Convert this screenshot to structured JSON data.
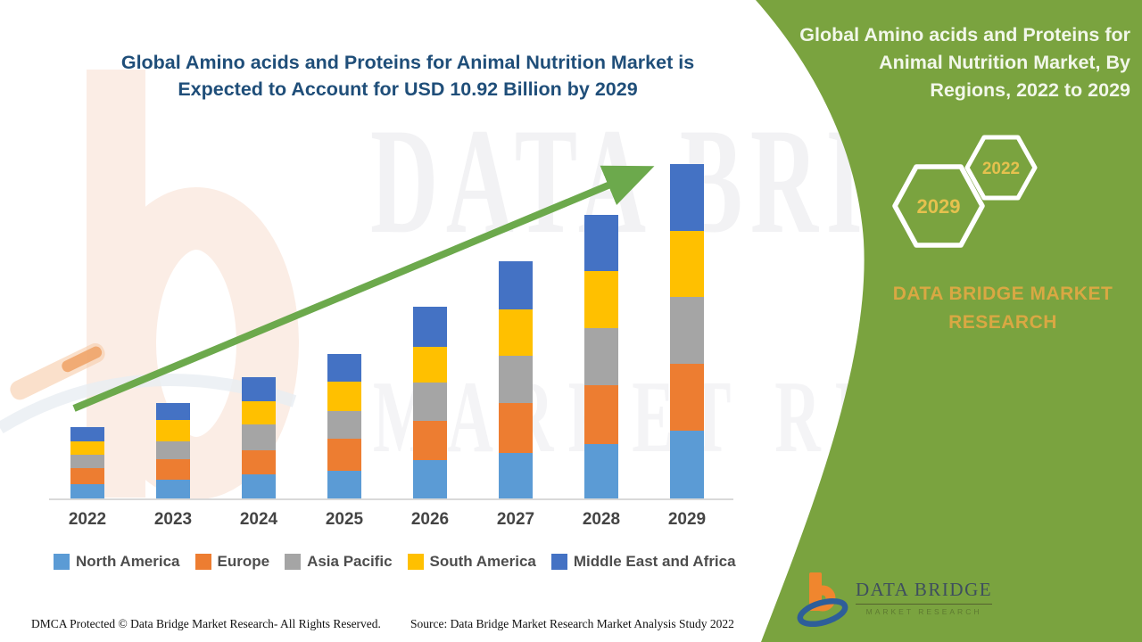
{
  "colors": {
    "panel_green": "#7AA33F",
    "title_blue": "#1F4E79",
    "arrow_green": "#6CA94C",
    "gold": "#D9A843",
    "hex_year_gold": "#E5C14E",
    "axis_gray": "#D9D9D9"
  },
  "header": {
    "title_line1": "Global Amino acids and Proteins for Animal Nutrition Market is",
    "title_line2": "Expected to Account for USD 10.92 Billion by 2029"
  },
  "panel": {
    "title_line1": "Global Amino acids and Proteins for",
    "title_line2": "Animal Nutrition Market, By",
    "title_line3": "Regions, 2022 to 2029",
    "hexagons": [
      {
        "label": "2029"
      },
      {
        "label": "2022"
      }
    ],
    "brand_line1": "DATA BRIDGE MARKET",
    "brand_line2": "RESEARCH",
    "logo": {
      "name": "DATA BRIDGE",
      "subtitle": "MARKET RESEARCH"
    }
  },
  "watermark": {
    "line1": "DATA BRIDGE",
    "line2": "MARKET RESEARCH"
  },
  "footer": {
    "left": "DMCA Protected © Data Bridge Market Research- All Rights Reserved.",
    "source": "Source: Data Bridge Market Research Market Analysis Study 2022"
  },
  "chart_data": {
    "type": "bar",
    "stacked": true,
    "title": "Global Amino acids and Proteins for Animal Nutrition Market is Expected to Account for USD 10.92 Billion by 2029",
    "unit": "USD Billion",
    "categories": [
      "2022",
      "2023",
      "2024",
      "2025",
      "2026",
      "2027",
      "2028",
      "2029"
    ],
    "series": [
      {
        "name": "North America",
        "color": "#5B9BD5",
        "values": [
          0.47,
          0.61,
          0.78,
          0.9,
          1.26,
          1.48,
          1.77,
          2.21
        ]
      },
      {
        "name": "Europe",
        "color": "#ED7D31",
        "values": [
          0.52,
          0.67,
          0.78,
          1.04,
          1.29,
          1.63,
          1.92,
          2.2
        ]
      },
      {
        "name": "Asia Pacific",
        "color": "#A5A5A5",
        "values": [
          0.44,
          0.58,
          0.87,
          0.93,
          1.23,
          1.55,
          1.89,
          2.17
        ]
      },
      {
        "name": "South America",
        "color": "#FFC000",
        "values": [
          0.44,
          0.7,
          0.74,
          0.95,
          1.19,
          1.51,
          1.87,
          2.18
        ]
      },
      {
        "name": "Middle East and Africa",
        "color": "#4472C4",
        "values": [
          0.47,
          0.55,
          0.78,
          0.89,
          1.29,
          1.58,
          1.82,
          2.16
        ]
      }
    ],
    "totals_estimated_usd_billion": [
      2.34,
      3.11,
      3.95,
      4.71,
      6.26,
      7.75,
      9.27,
      10.92
    ],
    "callout_value": "USD 10.92 Billion by 2029",
    "legend_position": "bottom",
    "y_axis_visible": false,
    "gridlines": false,
    "trend_arrow": true
  }
}
